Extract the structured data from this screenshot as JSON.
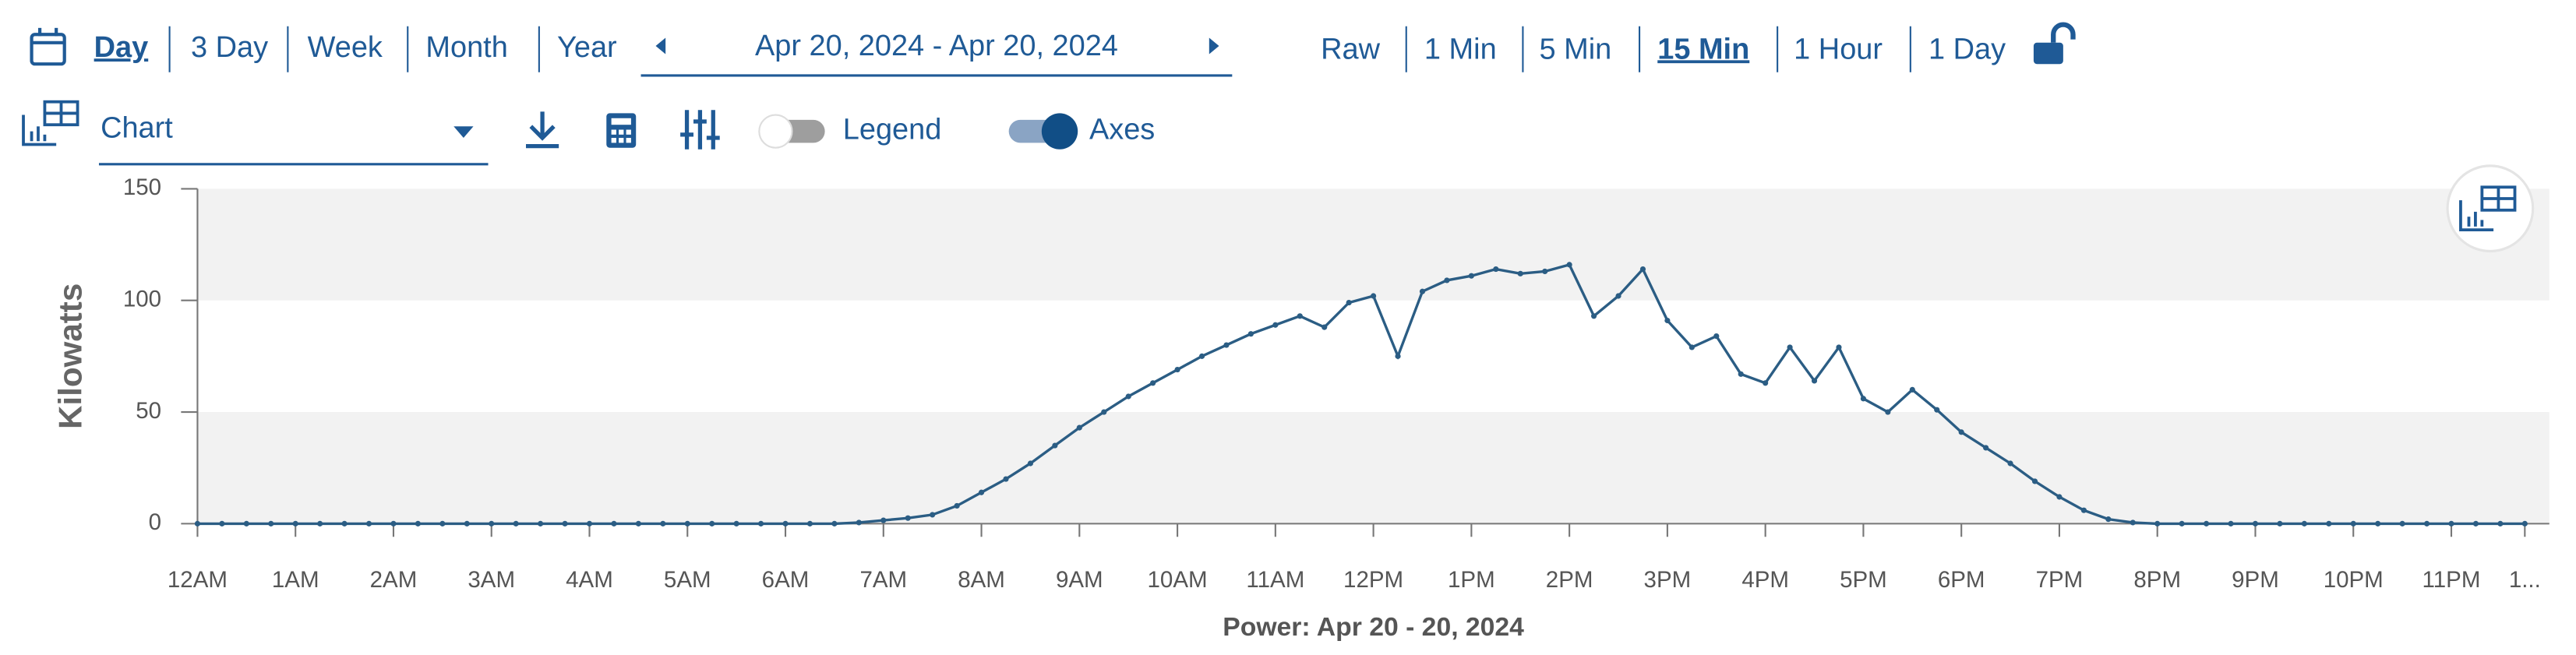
{
  "toolbar": {
    "ranges": [
      "Day",
      "3 Day",
      "Week",
      "Month",
      "Year"
    ],
    "date_range": "Apr 20, 2024 - Apr 20, 2024",
    "intervals": [
      "Raw",
      "1 Min",
      "5 Min",
      "15 Min",
      "1 Hour",
      "1 Day"
    ],
    "view_select": "Chart",
    "legend_toggle": "Legend",
    "axes_toggle": "Axes"
  },
  "chart_data": {
    "type": "line",
    "x_label": "Power: Apr 20 - 20, 2024",
    "y_label": "Kilowatts",
    "x": [
      0,
      0.25,
      0.5,
      0.75,
      1,
      1.25,
      1.5,
      1.75,
      2,
      2.25,
      2.5,
      2.75,
      3,
      3.25,
      3.5,
      3.75,
      4,
      4.25,
      4.5,
      4.75,
      5,
      5.25,
      5.5,
      5.75,
      6,
      6.25,
      6.5,
      6.75,
      7,
      7.25,
      7.5,
      7.75,
      8,
      8.25,
      8.5,
      8.75,
      9,
      9.25,
      9.5,
      9.75,
      10,
      10.25,
      10.5,
      10.75,
      11,
      11.25,
      11.5,
      11.75,
      12,
      12.25,
      12.5,
      12.75,
      13,
      13.25,
      13.5,
      13.75,
      14,
      14.25,
      14.5,
      14.75,
      15,
      15.25,
      15.5,
      15.75,
      16,
      16.25,
      16.5,
      16.75,
      17,
      17.25,
      17.5,
      17.75,
      18,
      18.25,
      18.5,
      18.75,
      19,
      19.25,
      19.5,
      19.75,
      20,
      20.25,
      20.5,
      20.75,
      21,
      21.25,
      21.5,
      21.75,
      22,
      22.25,
      22.5,
      22.75,
      23,
      23.25,
      23.5,
      23.75
    ],
    "series": [
      {
        "name": "Power",
        "color": "#2b5d84",
        "values": [
          0,
          0,
          0,
          0,
          0,
          0,
          0,
          0,
          0,
          0,
          0,
          0,
          0,
          0,
          0,
          0,
          0,
          0,
          0,
          0,
          0,
          0,
          0,
          0,
          0,
          0,
          0,
          0.5,
          1.5,
          2.5,
          4,
          8,
          14,
          20,
          27,
          35,
          43,
          50,
          57,
          63,
          69,
          75,
          80,
          85,
          89,
          93,
          88,
          99,
          102,
          75,
          104,
          109,
          111,
          114,
          112,
          113,
          116,
          93,
          102,
          114,
          91,
          79,
          84,
          67,
          63,
          79,
          64,
          79,
          56,
          50,
          60,
          51,
          41,
          34,
          27,
          19,
          12,
          6,
          2,
          0.5,
          0,
          0,
          0,
          0,
          0,
          0,
          0,
          0,
          0,
          0,
          0,
          0,
          0,
          0,
          0,
          0
        ]
      }
    ],
    "xlim": [
      0,
      24
    ],
    "xticks": [
      {
        "value": 0,
        "label": "12AM"
      },
      {
        "value": 1,
        "label": "1AM"
      },
      {
        "value": 2,
        "label": "2AM"
      },
      {
        "value": 3,
        "label": "3AM"
      },
      {
        "value": 4,
        "label": "4AM"
      },
      {
        "value": 5,
        "label": "5AM"
      },
      {
        "value": 6,
        "label": "6AM"
      },
      {
        "value": 7,
        "label": "7AM"
      },
      {
        "value": 8,
        "label": "8AM"
      },
      {
        "value": 9,
        "label": "9AM"
      },
      {
        "value": 10,
        "label": "10AM"
      },
      {
        "value": 11,
        "label": "11AM"
      },
      {
        "value": 12,
        "label": "12PM"
      },
      {
        "value": 13,
        "label": "1PM"
      },
      {
        "value": 14,
        "label": "2PM"
      },
      {
        "value": 15,
        "label": "3PM"
      },
      {
        "value": 16,
        "label": "4PM"
      },
      {
        "value": 17,
        "label": "5PM"
      },
      {
        "value": 18,
        "label": "6PM"
      },
      {
        "value": 19,
        "label": "7PM"
      },
      {
        "value": 20,
        "label": "8PM"
      },
      {
        "value": 21,
        "label": "9PM"
      },
      {
        "value": 22,
        "label": "10PM"
      },
      {
        "value": 23,
        "label": "11PM"
      },
      {
        "value": 23.75,
        "label": "1..."
      }
    ],
    "ylim": [
      0,
      150
    ],
    "yticks": [
      0,
      50,
      100,
      150
    ],
    "grid": true
  }
}
